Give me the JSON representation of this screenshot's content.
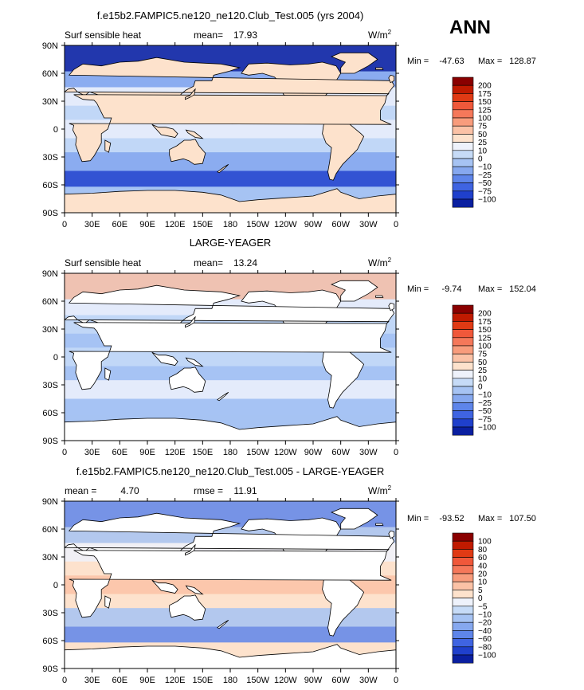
{
  "season_label": "ANN",
  "colors": {
    "land": "#ffffff",
    "frame": "#000000",
    "coast": "#000000"
  },
  "chart_data": [
    {
      "type": "heatmap",
      "title": "f.e15b2.FAMPIC5.ne120_ne120.Club_Test.005 (yrs 2004)",
      "left_label": "Surf sensible heat",
      "stat_label": "mean=",
      "stat_value": "17.93",
      "units_base": "W/m",
      "units_exp": "2",
      "min_label": "Min =",
      "min_value": "-47.63",
      "max_label": "Max =",
      "max_value": "128.87",
      "lat_ticks": [
        "90N",
        "60N",
        "30N",
        "0",
        "30S",
        "60S",
        "90S"
      ],
      "lon_ticks": [
        "0",
        "30E",
        "60E",
        "90E",
        "120E",
        "150E",
        "180",
        "150W",
        "120W",
        "90W",
        "60W",
        "30W",
        "0"
      ],
      "levels": [
        "200",
        "175",
        "150",
        "125",
        "100",
        "75",
        "50",
        "25",
        "10",
        "0",
        "−10",
        "−25",
        "−50",
        "−75",
        "−100"
      ],
      "colors": [
        "#8a0000",
        "#c01a00",
        "#e03a14",
        "#f0583a",
        "#f5785a",
        "#f89c7c",
        "#fbc2a6",
        "#fde2cc",
        "#eef2fb",
        "#c6dbf7",
        "#a6c3f3",
        "#86a8ef",
        "#5e85ea",
        "#3f64e2",
        "#1f40cc",
        "#0a1fa0"
      ],
      "ocean_level": "0",
      "band_levels": [
        "-100",
        "-10",
        "25",
        "10",
        "25",
        "10",
        "-10",
        "-75"
      ],
      "land_level": "50"
    },
    {
      "type": "heatmap",
      "title": "LARGE-YEAGER",
      "left_label": "Surf sensible heat",
      "stat_label": "mean=",
      "stat_value": "13.24",
      "units_base": "W/m",
      "units_exp": "2",
      "min_label": "Min =",
      "min_value": "-9.74",
      "max_label": "Max =",
      "max_value": "152.04",
      "lat_ticks": [
        "90N",
        "60N",
        "30N",
        "0",
        "30S",
        "60S",
        "90S"
      ],
      "lon_ticks": [
        "0",
        "30E",
        "60E",
        "90E",
        "120E",
        "150E",
        "180",
        "150W",
        "120W",
        "90W",
        "60W",
        "30W",
        "0"
      ],
      "levels": [
        "200",
        "175",
        "150",
        "125",
        "100",
        "75",
        "50",
        "25",
        "10",
        "0",
        "−10",
        "−25",
        "−50",
        "−75",
        "−100"
      ],
      "colors": [
        "#8a0000",
        "#c01a00",
        "#e03a14",
        "#f0583a",
        "#f5785a",
        "#f89c7c",
        "#fbc2a6",
        "#fde2cc",
        "#eef2fb",
        "#c6dbf7",
        "#a6c3f3",
        "#86a8ef",
        "#5e85ea",
        "#3f64e2",
        "#1f40cc",
        "#0a1fa0"
      ],
      "ocean_level": "0",
      "band_levels": [
        "75",
        "25",
        "10",
        "0",
        "10",
        "0",
        "25",
        "0"
      ],
      "land_level": "none"
    },
    {
      "type": "heatmap",
      "title": "f.e15b2.FAMPIC5.ne120_ne120.Club_Test.005 - LARGE-YEAGER",
      "left_label": "mean =",
      "left_value": "4.70",
      "stat_label": "rmse =",
      "stat_value": "11.91",
      "units_base": "W/m",
      "units_exp": "2",
      "min_label": "Min =",
      "min_value": "-93.52",
      "max_label": "Max =",
      "max_value": "107.50",
      "lat_ticks": [
        "90N",
        "60N",
        "30N",
        "0",
        "30S",
        "60S",
        "90S"
      ],
      "lon_ticks": [
        "0",
        "30E",
        "60E",
        "90E",
        "120E",
        "150E",
        "180",
        "150W",
        "120W",
        "90W",
        "60W",
        "30W",
        "0"
      ],
      "levels": [
        "100",
        "80",
        "60",
        "40",
        "20",
        "10",
        "5",
        "0",
        "−5",
        "−10",
        "−20",
        "−40",
        "−60",
        "−80",
        "−100"
      ],
      "colors": [
        "#8a0000",
        "#c01a00",
        "#e03a14",
        "#f0583a",
        "#f5785a",
        "#f89c7c",
        "#fbc2a6",
        "#fde2cc",
        "#eef2fb",
        "#c6dbf7",
        "#a6c3f3",
        "#86a8ef",
        "#5e85ea",
        "#3f64e2",
        "#1f40cc",
        "#0a1fa0"
      ],
      "ocean_level": "5",
      "band_levels": [
        "-40",
        "-10",
        "0",
        "5",
        "10",
        "5",
        "-10",
        "-40"
      ],
      "land_level": "none"
    }
  ]
}
